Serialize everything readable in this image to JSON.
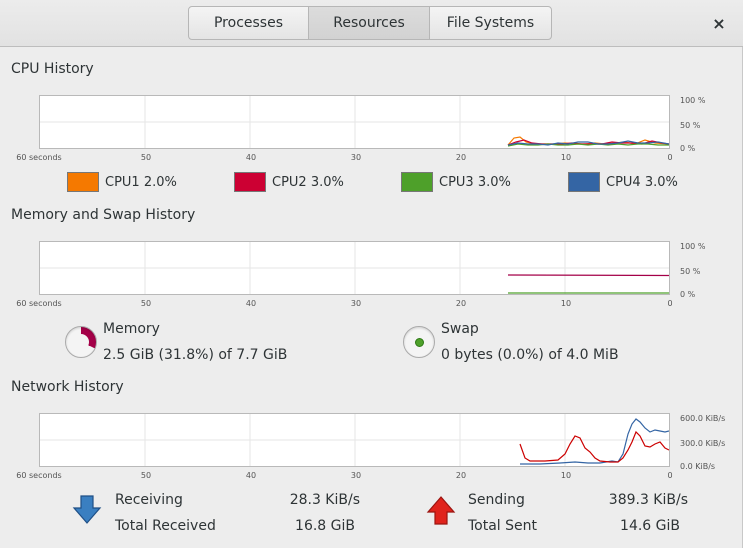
{
  "tabs": [
    {
      "label": "Processes",
      "active": false
    },
    {
      "label": "Resources",
      "active": true
    },
    {
      "label": "File Systems",
      "active": false
    }
  ],
  "close_glyph": "×",
  "cpu": {
    "title": "CPU History",
    "y_ticks": [
      "100 %",
      "50 %",
      "0 %"
    ],
    "x_ticks": [
      "60 seconds",
      "50",
      "40",
      "30",
      "20",
      "10",
      "0"
    ],
    "legend": [
      {
        "label": "CPU1",
        "value": "2.0%",
        "color": "#f57900"
      },
      {
        "label": "CPU2",
        "value": "3.0%",
        "color": "#cc0033"
      },
      {
        "label": "CPU3",
        "value": "3.0%",
        "color": "#4ea02a"
      },
      {
        "label": "CPU4",
        "value": "3.0%",
        "color": "#3465a4"
      }
    ]
  },
  "memory": {
    "title": "Memory and Swap History",
    "y_ticks": [
      "100 %",
      "50 %",
      "0 %"
    ],
    "x_ticks": [
      "60 seconds",
      "50",
      "40",
      "30",
      "20",
      "10",
      "0"
    ],
    "memory_label": "Memory",
    "memory_detail": "2.5 GiB (31.8%) of 7.7 GiB",
    "memory_color": "#a40048",
    "swap_label": "Swap",
    "swap_detail": "0 bytes (0.0%) of 4.0 MiB",
    "swap_color": "#4ea02a"
  },
  "network": {
    "title": "Network History",
    "y_ticks": [
      "600.0 KiB/s",
      "300.0 KiB/s",
      "0.0 KiB/s"
    ],
    "x_ticks": [
      "60 seconds",
      "50",
      "40",
      "30",
      "20",
      "10",
      "0"
    ],
    "receiving_label": "Receiving",
    "receiving_value": "28.3 KiB/s",
    "total_received_label": "Total Received",
    "total_received_value": "16.8 GiB",
    "sending_label": "Sending",
    "sending_value": "389.3 KiB/s",
    "total_sent_label": "Total Sent",
    "total_sent_value": "14.6 GiB",
    "receive_color": "#3465a4",
    "send_color": "#cc0000"
  }
}
